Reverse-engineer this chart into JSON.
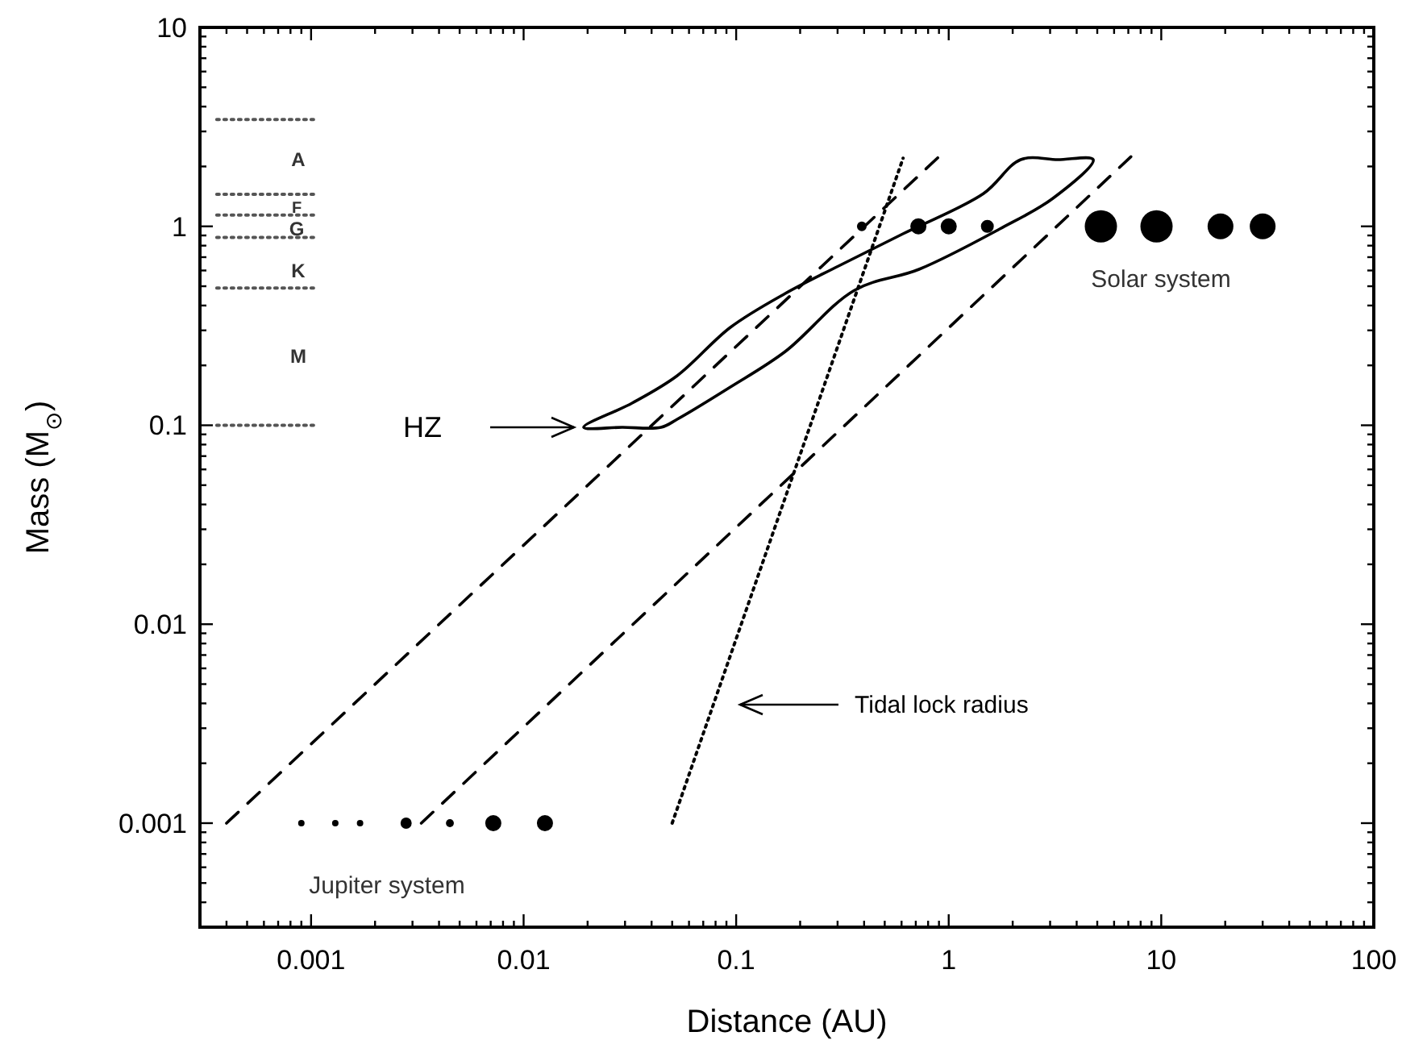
{
  "chart_data": {
    "type": "line",
    "xlabel": "Distance (AU)",
    "ylabel": "Mass (M$_{⊙}$)",
    "log": "xy",
    "xlim": [
      0.0003,
      100
    ],
    "ylim": [
      0.0003,
      10
    ],
    "xticks": [
      {
        "value": 0.0004,
        "label": null
      },
      {
        "value": 0.0005,
        "label": null
      },
      {
        "value": 0.0006,
        "label": null
      },
      {
        "value": 0.0007,
        "label": null
      },
      {
        "value": 0.0008,
        "label": null
      },
      {
        "value": 0.0009,
        "label": null
      },
      0.001,
      {
        "value": 0.002,
        "label": null
      },
      {
        "value": 0.003,
        "label": null
      },
      {
        "value": 0.004,
        "label": null
      },
      {
        "value": 0.005,
        "label": null
      },
      {
        "value": 0.006,
        "label": null
      },
      {
        "value": 0.007,
        "label": null
      },
      {
        "value": 0.008,
        "label": null
      },
      {
        "value": 0.009,
        "label": null
      },
      0.01,
      {
        "value": 0.02,
        "label": null
      },
      {
        "value": 0.03,
        "label": null
      },
      {
        "value": 0.04,
        "label": null
      },
      {
        "value": 0.05,
        "label": null
      },
      {
        "value": 0.06,
        "label": null
      },
      {
        "value": 0.07,
        "label": null
      },
      {
        "value": 0.08,
        "label": null
      },
      {
        "value": 0.09,
        "label": null
      },
      0.1,
      {
        "value": 0.2,
        "label": null
      },
      {
        "value": 0.3,
        "label": null
      },
      {
        "value": 0.4,
        "label": null
      },
      {
        "value": 0.5,
        "label": null
      },
      {
        "value": 0.6,
        "label": null
      },
      {
        "value": 0.7,
        "label": null
      },
      {
        "value": 0.8,
        "label": null
      },
      {
        "value": 0.9,
        "label": null
      },
      1,
      {
        "value": 2,
        "label": null
      },
      {
        "value": 3,
        "label": null
      },
      {
        "value": 4,
        "label": null
      },
      {
        "value": 5,
        "label": null
      },
      {
        "value": 6,
        "label": null
      },
      {
        "value": 7,
        "label": null
      },
      {
        "value": 8,
        "label": null
      },
      {
        "value": 9,
        "label": null
      },
      10,
      {
        "value": 20,
        "label": null
      },
      {
        "value": 30,
        "label": null
      },
      {
        "value": 40,
        "label": null
      },
      {
        "value": 50,
        "label": null
      },
      {
        "value": 60,
        "label": null
      },
      {
        "value": 70,
        "label": null
      },
      {
        "value": 80,
        "label": null
      },
      {
        "value": 90,
        "label": null
      },
      100
    ],
    "yticks": [
      {
        "value": 0.0004,
        "label": null
      },
      {
        "value": 0.0005,
        "label": null
      },
      {
        "value": 0.0006,
        "label": null
      },
      {
        "value": 0.0007,
        "label": null
      },
      {
        "value": 0.0008,
        "label": null
      },
      {
        "value": 0.0009,
        "label": null
      },
      0.001,
      {
        "value": 0.002,
        "label": null
      },
      {
        "value": 0.003,
        "label": null
      },
      {
        "value": 0.004,
        "label": null
      },
      {
        "value": 0.005,
        "label": null
      },
      {
        "value": 0.006,
        "label": null
      },
      {
        "value": 0.007,
        "label": null
      },
      {
        "value": 0.008,
        "label": null
      },
      {
        "value": 0.009,
        "label": null
      },
      0.01,
      {
        "value": 0.02,
        "label": null
      },
      {
        "value": 0.03,
        "label": null
      },
      {
        "value": 0.04,
        "label": null
      },
      {
        "value": 0.05,
        "label": null
      },
      {
        "value": 0.06,
        "label": null
      },
      {
        "value": 0.07,
        "label": null
      },
      {
        "value": 0.08,
        "label": null
      },
      {
        "value": 0.09,
        "label": null
      },
      0.1,
      {
        "value": 0.2,
        "label": null
      },
      {
        "value": 0.3,
        "label": null
      },
      {
        "value": 0.4,
        "label": null
      },
      {
        "value": 0.5,
        "label": null
      },
      {
        "value": 0.6,
        "label": null
      },
      {
        "value": 0.7,
        "label": null
      },
      {
        "value": 0.8,
        "label": null
      },
      {
        "value": 0.9,
        "label": null
      },
      1,
      {
        "value": 2,
        "label": null
      },
      {
        "value": 3,
        "label": null
      },
      {
        "value": 4,
        "label": null
      },
      {
        "value": 5,
        "label": null
      },
      {
        "value": 6,
        "label": null
      },
      {
        "value": 7,
        "label": null
      },
      {
        "value": 8,
        "label": null
      },
      {
        "value": 9,
        "label": null
      },
      10
    ],
    "series": [
      {
        "type": "bubble",
        "color": "#000000",
        "x": [
          0.39,
          0.72,
          1,
          1.52,
          5.2,
          9.5,
          19,
          30
        ],
        "values": [
          1,
          1,
          1,
          1,
          1,
          1,
          1,
          1
        ],
        "sizes": [
          0.09,
          0.25,
          0.25,
          0.16,
          1,
          1,
          0.64,
          0.64
        ]
      },
      {
        "type": "bubble",
        "color": "#000000",
        "x": [
          0.0009,
          0.0013,
          0.0017,
          0.0028,
          0.0045,
          0.0072,
          0.0126
        ],
        "values": [
          0.001,
          0.001,
          0.001,
          0.001,
          0.001,
          0.001,
          0.001
        ],
        "sizes": [
          0.04,
          0.04,
          0.04,
          0.12,
          0.06,
          0.25,
          0.25
        ]
      },
      {
        "line_style": "dashed",
        "color": "#000000",
        "x": [
          0.0004,
          0.9
        ],
        "values": [
          0.001,
          2.24
        ]
      },
      {
        "line_style": "dashed",
        "color": "#000000",
        "x": [
          0.0033,
          7.2
        ],
        "values": [
          0.001,
          2.24
        ]
      },
      {
        "line_style": "dotted",
        "color": "#000000",
        "x": [
          0.05,
          0.61
        ],
        "values": [
          0.001,
          2.2
        ]
      },
      {
        "type": "line",
        "line_style": "dotted",
        "color": "#555555",
        "x": [
          0.00036,
          0.00103
        ],
        "values": [
          3.44,
          3.44
        ]
      },
      {
        "type": "line",
        "line_style": "dotted",
        "color": "#555555",
        "x": [
          0.00036,
          0.00103
        ],
        "values": [
          1.45,
          1.45
        ]
      },
      {
        "type": "line",
        "line_style": "dotted",
        "color": "#555555",
        "x": [
          0.00036,
          0.00103
        ],
        "values": [
          1.14,
          1.14
        ]
      },
      {
        "type": "line",
        "line_style": "dotted",
        "color": "#555555",
        "x": [
          0.00036,
          0.00103
        ],
        "values": [
          0.88,
          0.88
        ]
      },
      {
        "type": "line",
        "line_style": "dotted",
        "color": "#555555",
        "x": [
          0.00036,
          0.00103
        ],
        "values": [
          0.49,
          0.49
        ]
      },
      {
        "type": "line",
        "line_style": "dotted",
        "color": "#555555",
        "x": [
          0.00036,
          0.00103
        ],
        "values": [
          0.1,
          0.1
        ]
      }
    ],
    "annotations": [
      "HZ",
      "Tidal lock radius",
      "Solar system",
      "Jupiter system",
      "A",
      "F",
      "G",
      "K",
      "M"
    ]
  }
}
